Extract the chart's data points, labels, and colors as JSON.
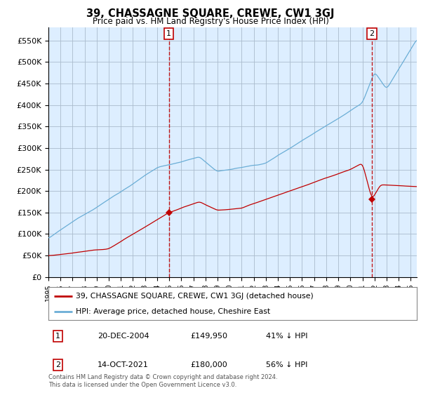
{
  "title": "39, CHASSAGNE SQUARE, CREWE, CW1 3GJ",
  "subtitle": "Price paid vs. HM Land Registry's House Price Index (HPI)",
  "ylabel_ticks": [
    "£0",
    "£50K",
    "£100K",
    "£150K",
    "£200K",
    "£250K",
    "£300K",
    "£350K",
    "£400K",
    "£450K",
    "£500K",
    "£550K"
  ],
  "ytick_values": [
    0,
    50000,
    100000,
    150000,
    200000,
    250000,
    300000,
    350000,
    400000,
    450000,
    500000,
    550000
  ],
  "ylim": [
    0,
    580000
  ],
  "xlim_start": 1995.0,
  "xlim_end": 2025.5,
  "sale1_x": 2004.97,
  "sale1_y": 149950,
  "sale1_label": "1",
  "sale2_x": 2021.79,
  "sale2_y": 180000,
  "sale2_label": "2",
  "legend_line1": "39, CHASSAGNE SQUARE, CREWE, CW1 3GJ (detached house)",
  "legend_line2": "HPI: Average price, detached house, Cheshire East",
  "footnote": "Contains HM Land Registry data © Crown copyright and database right 2024.\nThis data is licensed under the Open Government Licence v3.0.",
  "hpi_color": "#6baed6",
  "price_color": "#c00000",
  "bg_color": "#ffffff",
  "plot_bg_color": "#ddeeff",
  "grid_color": "#aabbcc",
  "marker_box_color": "#c00000"
}
